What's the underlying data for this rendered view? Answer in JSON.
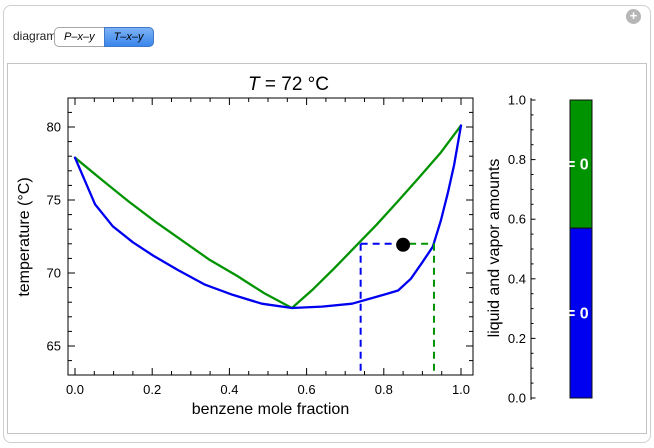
{
  "app": {
    "expand_icon": "+"
  },
  "controls": {
    "label": "diagram",
    "options": [
      {
        "label": "P–x–y",
        "selected": false
      },
      {
        "label": "T–x–y",
        "selected": true
      }
    ]
  },
  "plot": {
    "title_italic": "T",
    "title_rest": " = 72 °C",
    "xlabel": "benzene mole fraction",
    "ylabel": "temperature (°C)",
    "xticks": [
      {
        "v": 0,
        "label": "0.0"
      },
      {
        "v": 0.2,
        "label": "0.2"
      },
      {
        "v": 0.4,
        "label": "0.4"
      },
      {
        "v": 0.6,
        "label": "0.6"
      },
      {
        "v": 0.8,
        "label": "0.8"
      },
      {
        "v": 1,
        "label": "1.0"
      }
    ],
    "yticks": [
      {
        "v": 65,
        "label": "65"
      },
      {
        "v": 70,
        "label": "70"
      },
      {
        "v": 75,
        "label": "75"
      },
      {
        "v": 80,
        "label": "80"
      }
    ]
  },
  "bar": {
    "ylabel": "liquid and vapor amounts",
    "ticks": [
      {
        "v": 0,
        "label": "0.0"
      },
      {
        "v": 0.2,
        "label": "0.2"
      },
      {
        "v": 0.4,
        "label": "0.4"
      },
      {
        "v": 0.6,
        "label": "0.6"
      },
      {
        "v": 0.8,
        "label": "0.8"
      },
      {
        "v": 1,
        "label": "1.0"
      }
    ],
    "segments": [
      {
        "name": "vapor-amount",
        "color": "#009300",
        "from": 0.57,
        "to": 1.0,
        "label": "= 0"
      },
      {
        "name": "liquid-amount",
        "color": "#0000f0",
        "from": 0.0,
        "to": 0.57,
        "label": "= 0"
      }
    ]
  },
  "chart_data": {
    "type": "line",
    "title": "T = 72 °C",
    "xlabel": "benzene mole fraction",
    "ylabel": "temperature (°C)",
    "xlim": [
      0,
      1
    ],
    "ylim": [
      63,
      82
    ],
    "grid": false,
    "series": [
      {
        "name": "green-curve",
        "color": "#009300",
        "points": [
          [
            0,
            77.9
          ],
          [
            0.069,
            76.4
          ],
          [
            0.139,
            74.9
          ],
          [
            0.209,
            73.5
          ],
          [
            0.279,
            72.2
          ],
          [
            0.349,
            70.9
          ],
          [
            0.42,
            69.8
          ],
          [
            0.491,
            68.6
          ],
          [
            0.562,
            67.6
          ],
          [
            0.617,
            68.9
          ],
          [
            0.671,
            70.3
          ],
          [
            0.726,
            71.8
          ],
          [
            0.781,
            73.3
          ],
          [
            0.836,
            74.9
          ],
          [
            0.89,
            76.5
          ],
          [
            0.946,
            78.2
          ],
          [
            1,
            80.1
          ]
        ]
      },
      {
        "name": "blue-curve",
        "color": "#0000f0",
        "points": [
          [
            0,
            77.9
          ],
          [
            0.052,
            74.7
          ],
          [
            0.098,
            73.2
          ],
          [
            0.15,
            72.1
          ],
          [
            0.202,
            71.2
          ],
          [
            0.267,
            70.2
          ],
          [
            0.337,
            69.2
          ],
          [
            0.409,
            68.5
          ],
          [
            0.484,
            67.9
          ],
          [
            0.562,
            67.6
          ],
          [
            0.64,
            67.7
          ],
          [
            0.718,
            67.9
          ],
          [
            0.785,
            68.4
          ],
          [
            0.837,
            68.8
          ],
          [
            0.87,
            69.6
          ],
          [
            0.899,
            70.7
          ],
          [
            0.927,
            71.8
          ],
          [
            0.948,
            73.6
          ],
          [
            0.966,
            75.5
          ],
          [
            0.982,
            77.4
          ],
          [
            1,
            80.1
          ]
        ]
      }
    ],
    "annotations": {
      "tie_line_T": 72,
      "blue_dashed_x": 0.74,
      "green_dashed_x": 0.93,
      "black_point": {
        "x": 0.85,
        "T": 72
      }
    },
    "bar_chart": {
      "ylabel": "liquid and vapor amounts",
      "green_segment": {
        "from": 0.57,
        "to": 1.0,
        "visible_label": "= 0"
      },
      "blue_segment": {
        "from": 0.0,
        "to": 0.57,
        "visible_label": "= 0"
      }
    }
  }
}
